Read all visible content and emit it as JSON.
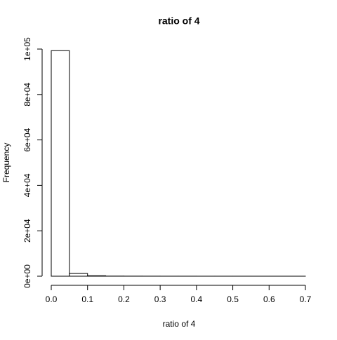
{
  "chart_data": {
    "type": "histogram",
    "title": "ratio of 4",
    "x_label": "ratio of 4",
    "y_label": "Frequency",
    "bins": [
      0,
      0.05,
      0.1,
      0.15,
      0.2,
      0.25,
      0.3,
      0.35,
      0.4,
      0.45,
      0.5,
      0.55,
      0.6,
      0.65,
      0.7
    ],
    "counts": [
      99300,
      1200,
      200,
      50,
      30,
      20,
      10,
      10,
      5,
      5,
      5,
      3,
      2,
      1
    ],
    "color": "#ffffff",
    "xlim": [
      0,
      0.7
    ],
    "xticks": [
      {
        "value": 0,
        "label": "0.0"
      },
      0.1,
      0.2,
      0.3,
      0.4,
      0.5,
      0.6,
      0.7
    ],
    "ylim": [
      0,
      100000
    ],
    "yticks": [
      {
        "value": 0,
        "label": "0e+00"
      },
      {
        "value": 20000,
        "label": "2e+04"
      },
      {
        "value": 40000,
        "label": "4e+04"
      },
      {
        "value": 60000,
        "label": "6e+04"
      },
      {
        "value": 80000,
        "label": "8e+04"
      },
      {
        "value": 100000,
        "label": "1e+05"
      }
    ]
  }
}
